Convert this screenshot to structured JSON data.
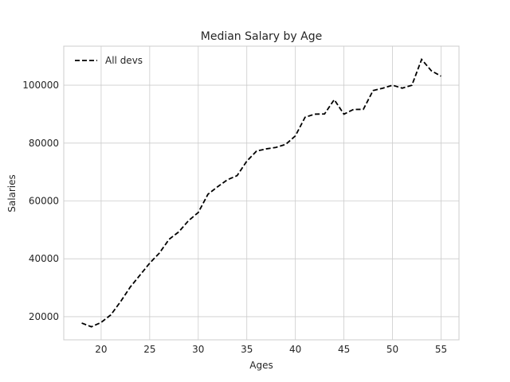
{
  "chart_data": {
    "type": "line",
    "title": "Median Salary by Age",
    "xlabel": "Ages",
    "ylabel": "Salaries",
    "xlim": [
      16.15,
      56.85
    ],
    "ylim": [
      12000,
      113500
    ],
    "xticks": [
      20,
      25,
      30,
      35,
      40,
      45,
      50,
      55
    ],
    "yticks": [
      20000,
      40000,
      60000,
      80000,
      100000
    ],
    "grid": true,
    "legend": "top-left",
    "x": [
      18,
      19,
      20,
      21,
      22,
      23,
      24,
      25,
      26,
      27,
      28,
      29,
      30,
      31,
      32,
      33,
      34,
      35,
      36,
      37,
      38,
      39,
      40,
      41,
      42,
      43,
      44,
      45,
      46,
      47,
      48,
      49,
      50,
      51,
      52,
      53,
      54,
      55
    ],
    "series": [
      {
        "name": "All devs",
        "color": "#000000",
        "linestyle": "dashed",
        "values": [
          17784,
          16500,
          18012,
          20628,
          25206,
          30252,
          34368,
          38496,
          42000,
          46752,
          49320,
          53200,
          56000,
          62316,
          64928,
          67317,
          68748,
          73752,
          77232,
          78000,
          78508,
          79536,
          82488,
          88935,
          90000,
          90056,
          95000,
          90000,
          91633,
          91660,
          98150,
          98964,
          100000,
          98988,
          100000,
          108923,
          105000,
          103117
        ]
      }
    ]
  }
}
